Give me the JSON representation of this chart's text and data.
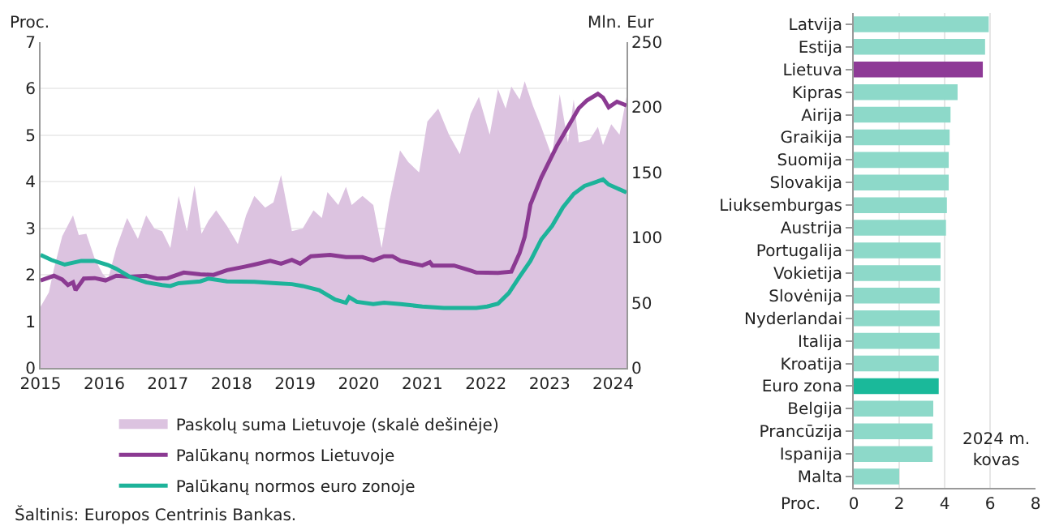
{
  "chart_data": [
    {
      "type": "line",
      "ylabel": "Proc.",
      "y2label": "Mln. Eur",
      "xlim": [
        2015,
        2024.21
      ],
      "xticks": [
        2015,
        2016,
        2017,
        2018,
        2019,
        2020,
        2021,
        2022,
        2023,
        2024
      ],
      "ylim": [
        0,
        7
      ],
      "yticks": [
        0,
        1,
        2,
        3,
        4,
        5,
        6,
        7
      ],
      "y2lim": [
        0,
        250
      ],
      "y2ticks": [
        0,
        50,
        100,
        150,
        200,
        250
      ],
      "grid": "y",
      "legend": "bottom",
      "marker": "none",
      "line_style": "solid",
      "annotations": [
        "Šaltinis: Europos Centrinis Bankas."
      ],
      "series": [
        {
          "name": "Paskolų suma Lietuvoje (skalė dešinėje)",
          "type": "area",
          "axis": "y2",
          "color": "#dcc3e0",
          "x": [
            2015.0,
            2015.13,
            2015.21,
            2015.34,
            2015.51,
            2015.6,
            2015.72,
            2015.85,
            2015.98,
            2016.06,
            2016.19,
            2016.36,
            2016.53,
            2016.66,
            2016.79,
            2016.91,
            2017.04,
            2017.17,
            2017.3,
            2017.42,
            2017.53,
            2017.64,
            2017.76,
            2017.93,
            2018.1,
            2018.23,
            2018.36,
            2018.53,
            2018.66,
            2018.78,
            2018.95,
            2019.12,
            2019.29,
            2019.42,
            2019.51,
            2019.68,
            2019.8,
            2019.89,
            2020.06,
            2020.23,
            2020.36,
            2020.48,
            2020.65,
            2020.78,
            2020.95,
            2021.08,
            2021.25,
            2021.42,
            2021.59,
            2021.76,
            2021.89,
            2022.06,
            2022.19,
            2022.31,
            2022.4,
            2022.53,
            2022.61,
            2022.74,
            2022.87,
            2023.04,
            2023.16,
            2023.29,
            2023.38,
            2023.46,
            2023.63,
            2023.76,
            2023.84,
            2023.97,
            2024.1,
            2024.21
          ],
          "values": [
            47,
            58,
            76,
            101,
            117,
            102,
            103,
            84,
            72,
            68,
            92,
            115,
            99,
            117,
            107,
            105,
            92,
            132,
            105,
            140,
            103,
            113,
            121,
            109,
            95,
            117,
            132,
            123,
            127,
            148,
            105,
            107,
            121,
            115,
            135,
            125,
            139,
            125,
            132,
            125,
            92,
            127,
            167,
            158,
            150,
            189,
            199,
            179,
            164,
            195,
            208,
            179,
            214,
            199,
            216,
            206,
            220,
            201,
            185,
            162,
            210,
            173,
            206,
            173,
            175,
            185,
            171,
            187,
            179,
            208
          ]
        },
        {
          "name": "Palūkanų normos Lietuvoje",
          "type": "line",
          "color": "#8b3a92",
          "x": [
            2015.0,
            2015.21,
            2015.34,
            2015.43,
            2015.51,
            2015.55,
            2015.68,
            2015.85,
            2016.02,
            2016.19,
            2016.4,
            2016.66,
            2016.83,
            2017.0,
            2017.25,
            2017.51,
            2017.72,
            2017.93,
            2018.19,
            2018.36,
            2018.61,
            2018.78,
            2018.95,
            2019.08,
            2019.25,
            2019.55,
            2019.8,
            2020.06,
            2020.23,
            2020.4,
            2020.53,
            2020.66,
            2021.0,
            2021.12,
            2021.16,
            2021.5,
            2021.76,
            2021.85,
            2022.19,
            2022.4,
            2022.53,
            2022.61,
            2022.7,
            2022.87,
            2023.12,
            2023.29,
            2023.46,
            2023.59,
            2023.76,
            2023.84,
            2023.93,
            2024.06,
            2024.21
          ],
          "values": [
            1.88,
            1.98,
            1.9,
            1.78,
            1.84,
            1.67,
            1.92,
            1.93,
            1.88,
            1.98,
            1.96,
            1.98,
            1.92,
            1.93,
            2.05,
            2.01,
            2.0,
            2.1,
            2.17,
            2.22,
            2.3,
            2.24,
            2.32,
            2.24,
            2.4,
            2.43,
            2.38,
            2.38,
            2.31,
            2.4,
            2.4,
            2.3,
            2.2,
            2.27,
            2.2,
            2.2,
            2.09,
            2.05,
            2.04,
            2.07,
            2.47,
            2.82,
            3.51,
            4.09,
            4.78,
            5.18,
            5.58,
            5.75,
            5.89,
            5.81,
            5.6,
            5.72,
            5.64
          ]
        },
        {
          "name": "Palūkanų normos euro zonoje",
          "type": "line",
          "color": "#1db39a",
          "x": [
            2015.0,
            2015.17,
            2015.38,
            2015.64,
            2015.85,
            2016.06,
            2016.19,
            2016.4,
            2016.66,
            2016.91,
            2017.04,
            2017.17,
            2017.51,
            2017.64,
            2017.93,
            2018.36,
            2018.7,
            2018.95,
            2019.12,
            2019.38,
            2019.63,
            2019.8,
            2019.85,
            2019.97,
            2020.23,
            2020.4,
            2020.66,
            2021.0,
            2021.34,
            2021.59,
            2021.85,
            2022.02,
            2022.19,
            2022.36,
            2022.53,
            2022.7,
            2022.87,
            2023.04,
            2023.21,
            2023.38,
            2023.55,
            2023.72,
            2023.84,
            2023.93,
            2024.06,
            2024.21
          ],
          "values": [
            2.43,
            2.32,
            2.22,
            2.3,
            2.3,
            2.21,
            2.13,
            1.96,
            1.84,
            1.78,
            1.76,
            1.82,
            1.86,
            1.92,
            1.86,
            1.85,
            1.82,
            1.8,
            1.76,
            1.67,
            1.47,
            1.4,
            1.52,
            1.42,
            1.37,
            1.4,
            1.37,
            1.32,
            1.29,
            1.29,
            1.29,
            1.32,
            1.38,
            1.61,
            1.96,
            2.3,
            2.76,
            3.05,
            3.45,
            3.74,
            3.91,
            3.99,
            4.05,
            3.94,
            3.86,
            3.77
          ]
        }
      ]
    },
    {
      "type": "bar",
      "orientation": "horizontal",
      "xlabel": "Proc.",
      "xlim": [
        0,
        8
      ],
      "xticks": [
        0,
        2,
        4,
        6,
        8
      ],
      "grid": "x",
      "legend": false,
      "annotations": [
        "2024 m. kovas"
      ],
      "categories": [
        "Latvija",
        "Estija",
        "Lietuva",
        "Kipras",
        "Airija",
        "Graikija",
        "Suomija",
        "Slovakija",
        "Liuksemburgas",
        "Austrija",
        "Portugalija",
        "Vokietija",
        "Slovėnija",
        "Nyderlandai",
        "Italija",
        "Kroatija",
        "Euro zona",
        "Belgija",
        "Prancūzija",
        "Ispanija",
        "Malta"
      ],
      "values": [
        5.94,
        5.78,
        5.68,
        4.57,
        4.26,
        4.22,
        4.18,
        4.18,
        4.1,
        4.06,
        3.82,
        3.82,
        3.78,
        3.78,
        3.78,
        3.74,
        3.74,
        3.5,
        3.47,
        3.47,
        2.0
      ],
      "colors": [
        "#8dd9c9",
        "#8dd9c9",
        "#8e3a96",
        "#8dd9c9",
        "#8dd9c9",
        "#8dd9c9",
        "#8dd9c9",
        "#8dd9c9",
        "#8dd9c9",
        "#8dd9c9",
        "#8dd9c9",
        "#8dd9c9",
        "#8dd9c9",
        "#8dd9c9",
        "#8dd9c9",
        "#8dd9c9",
        "#1ab99a",
        "#8dd9c9",
        "#8dd9c9",
        "#8dd9c9",
        "#8dd9c9"
      ]
    }
  ]
}
